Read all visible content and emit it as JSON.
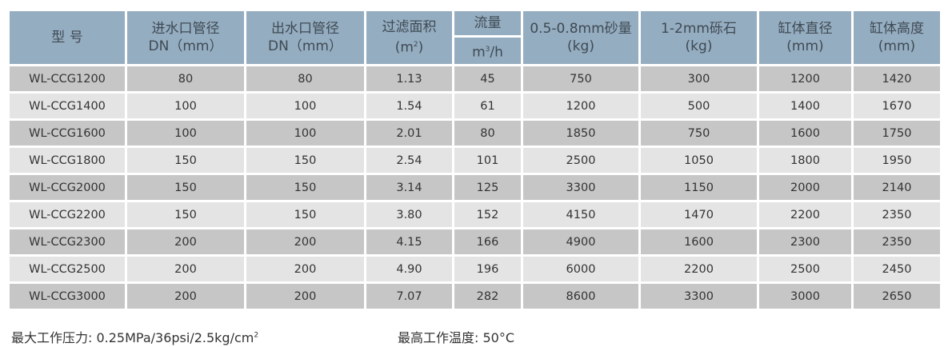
{
  "headers": {
    "model": "型 号",
    "inlet_1": "进水口管径",
    "inlet_2": "DN（mm）",
    "outlet_1": "出水口管径",
    "outlet_2": "DN（mm）",
    "area_1": "过滤面积",
    "area_2": "(m",
    "area_sup": "2",
    "area_3": ")",
    "flow_1": "流量",
    "flow_2a": "m",
    "flow_sup": "3",
    "flow_2b": "/h",
    "sand_1": "0.5-0.8mm砂量",
    "sand_2": "(kg)",
    "gravel_1": "1-2mm砾石",
    "gravel_2": "(kg)",
    "diameter_1": "缸体直径",
    "diameter_2": "(mm)",
    "height_1": "缸体高度",
    "height_2": "(mm)"
  },
  "rows": [
    [
      "WL-CCG1200",
      "80",
      "80",
      "1.13",
      "45",
      "750",
      "300",
      "1200",
      "1420"
    ],
    [
      "WL-CCG1400",
      "100",
      "100",
      "1.54",
      "61",
      "1200",
      "500",
      "1400",
      "1670"
    ],
    [
      "WL-CCG1600",
      "100",
      "100",
      "2.01",
      "80",
      "1850",
      "750",
      "1600",
      "1750"
    ],
    [
      "WL-CCG1800",
      "150",
      "150",
      "2.54",
      "101",
      "2500",
      "1050",
      "1800",
      "1950"
    ],
    [
      "WL-CCG2000",
      "150",
      "150",
      "3.14",
      "125",
      "3300",
      "1150",
      "2000",
      "2140"
    ],
    [
      "WL-CCG2200",
      "150",
      "150",
      "3.80",
      "152",
      "4150",
      "1470",
      "2200",
      "2350"
    ],
    [
      "WL-CCG2300",
      "200",
      "200",
      "4.15",
      "166",
      "4900",
      "1600",
      "2300",
      "2350"
    ],
    [
      "WL-CCG2500",
      "200",
      "200",
      "4.90",
      "196",
      "6000",
      "2200",
      "2500",
      "2450"
    ],
    [
      "WL-CCG3000",
      "200",
      "200",
      "7.07",
      "282",
      "8600",
      "3300",
      "3000",
      "2650"
    ]
  ],
  "footer": {
    "pressure": "最大工作压力: 0.25MPa/36psi/2.5kg/cm",
    "pressure_sup": "2",
    "temperature": "最高工作温度: 50°C"
  },
  "colors": {
    "header_bg": "#95adc0",
    "row_dark": "#c6c6c6",
    "row_light": "#e4e4e4"
  }
}
